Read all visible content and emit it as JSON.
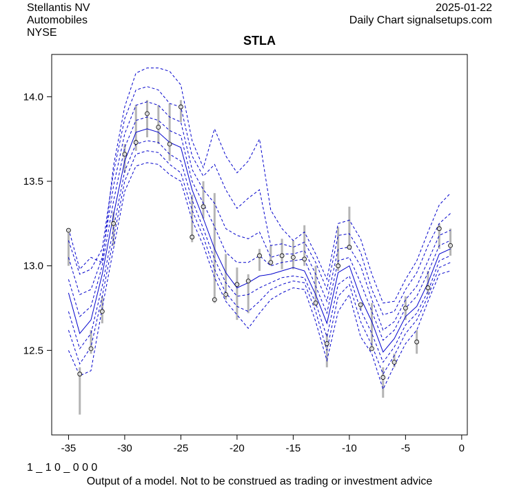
{
  "header": {
    "company": "Stellantis NV",
    "sector": "Automobiles",
    "exchange": "NYSE",
    "date": "2025-01-22",
    "source": "Daily Chart signalsetups.com"
  },
  "footer": {
    "code": "1 _ 1 0 _ 0 0 0",
    "disclaimer": "Output of a model. Not to be construed as trading or investment advice"
  },
  "chart_data": {
    "type": "line",
    "title": "STLA",
    "xlabel": "",
    "ylabel": "",
    "xlim": [
      -36.5,
      0.5
    ],
    "ylim": [
      12.0,
      14.25
    ],
    "xticks": [
      -35,
      -30,
      -25,
      -20,
      -15,
      -10,
      -5,
      0
    ],
    "yticks": [
      12.5,
      13.0,
      13.5,
      14.0
    ],
    "grid": false,
    "colors": {
      "model": "#0000cc",
      "bars": "#b4b4b4",
      "points": "#000000"
    },
    "x": [
      -35,
      -34,
      -33,
      -32,
      -31,
      -30,
      -29,
      -28,
      -27,
      -26,
      -25,
      -24,
      -23,
      -22,
      -21,
      -20,
      -19,
      -18,
      -17,
      -16,
      -15,
      -14,
      -13,
      -12,
      -11,
      -10,
      -9,
      -8,
      -7,
      -6,
      -5,
      -4,
      -3,
      -2,
      -1
    ],
    "price_ranges": [
      {
        "x": -35,
        "low": 13.0,
        "high": 13.22,
        "close": 13.21
      },
      {
        "x": -34,
        "low": 12.12,
        "high": 12.4,
        "close": 12.36
      },
      {
        "x": -33,
        "low": 12.48,
        "high": 12.62,
        "close": 12.51
      },
      {
        "x": -32,
        "low": 12.66,
        "high": 12.82,
        "close": 12.73
      },
      {
        "x": -31,
        "low": 13.12,
        "high": 13.32,
        "close": 13.25
      },
      {
        "x": -30,
        "low": 13.55,
        "high": 13.72,
        "close": 13.66
      },
      {
        "x": -29,
        "low": 13.68,
        "high": 13.95,
        "close": 13.73
      },
      {
        "x": -28,
        "low": 13.76,
        "high": 13.98,
        "close": 13.9
      },
      {
        "x": -27,
        "low": 13.72,
        "high": 13.95,
        "close": 13.82
      },
      {
        "x": -26,
        "low": 13.62,
        "high": 13.96,
        "close": 13.72
      },
      {
        "x": -25,
        "low": 13.85,
        "high": 13.98,
        "close": 13.94
      },
      {
        "x": -24,
        "low": 13.14,
        "high": 13.42,
        "close": 13.17
      },
      {
        "x": -23,
        "low": 13.28,
        "high": 13.5,
        "close": 13.35
      },
      {
        "x": -22,
        "low": 12.78,
        "high": 13.43,
        "close": 12.8
      },
      {
        "x": -21,
        "low": 12.8,
        "high": 13.07,
        "close": 12.83
      },
      {
        "x": -20,
        "low": 12.68,
        "high": 12.99,
        "close": 12.89
      },
      {
        "x": -19,
        "low": 12.72,
        "high": 12.95,
        "close": 12.91
      },
      {
        "x": -18,
        "low": 12.97,
        "high": 13.1,
        "close": 13.06
      },
      {
        "x": -17,
        "low": 13.0,
        "high": 13.12,
        "close": 13.02
      },
      {
        "x": -16,
        "low": 12.98,
        "high": 13.16,
        "close": 13.06
      },
      {
        "x": -15,
        "low": 12.98,
        "high": 13.15,
        "close": 13.05
      },
      {
        "x": -14,
        "low": 13.0,
        "high": 13.24,
        "close": 13.04
      },
      {
        "x": -13,
        "low": 12.76,
        "high": 13.0,
        "close": 12.78
      },
      {
        "x": -12,
        "low": 12.4,
        "high": 12.6,
        "close": 12.54
      },
      {
        "x": -11,
        "low": 12.97,
        "high": 13.23,
        "close": 13.0
      },
      {
        "x": -10,
        "low": 13.1,
        "high": 13.35,
        "close": 13.11
      },
      {
        "x": -9,
        "low": 12.74,
        "high": 12.78,
        "close": 12.77
      },
      {
        "x": -8,
        "low": 12.5,
        "high": 12.78,
        "close": 12.51
      },
      {
        "x": -7,
        "low": 12.22,
        "high": 12.4,
        "close": 12.34
      },
      {
        "x": -6,
        "low": 12.4,
        "high": 12.48,
        "close": 12.43
      },
      {
        "x": -5,
        "low": 12.68,
        "high": 12.82,
        "close": 12.75
      },
      {
        "x": -4,
        "low": 12.48,
        "high": 12.62,
        "close": 12.55
      },
      {
        "x": -3,
        "low": 12.83,
        "high": 12.97,
        "close": 12.87
      },
      {
        "x": -2,
        "low": 13.1,
        "high": 13.25,
        "close": 13.22
      },
      {
        "x": -1,
        "low": 13.06,
        "high": 13.22,
        "close": 13.12
      }
    ],
    "series": [
      {
        "name": "model",
        "style": "solid",
        "values": [
          12.84,
          12.6,
          12.68,
          12.95,
          13.3,
          13.62,
          13.79,
          13.81,
          13.79,
          13.73,
          13.7,
          13.45,
          13.28,
          13.1,
          12.96,
          12.87,
          12.9,
          12.94,
          12.95,
          12.97,
          12.99,
          12.97,
          12.83,
          12.66,
          12.96,
          13.0,
          12.81,
          12.67,
          12.49,
          12.57,
          12.7,
          12.76,
          12.9,
          13.07,
          13.1
        ]
      },
      {
        "name": "band-upper-1",
        "style": "dashed",
        "values": [
          12.92,
          12.7,
          12.76,
          13.0,
          13.38,
          13.7,
          13.86,
          13.88,
          13.86,
          13.8,
          13.77,
          13.5,
          13.37,
          13.23,
          13.08,
          13.02,
          13.02,
          13.06,
          13.0,
          13.02,
          13.03,
          13.04,
          12.88,
          12.72,
          13.03,
          13.05,
          12.9,
          12.73,
          12.56,
          12.62,
          12.75,
          12.82,
          12.96,
          13.12,
          13.15
        ]
      },
      {
        "name": "band-upper-2",
        "style": "dashed",
        "values": [
          13.05,
          12.83,
          12.86,
          13.05,
          13.47,
          13.78,
          13.95,
          13.97,
          13.95,
          13.88,
          13.85,
          13.57,
          13.45,
          13.37,
          13.22,
          13.18,
          13.16,
          13.2,
          13.05,
          13.07,
          13.07,
          13.09,
          12.95,
          12.79,
          13.1,
          13.11,
          13.0,
          12.8,
          12.62,
          12.67,
          12.8,
          12.88,
          13.03,
          13.18,
          13.21
        ]
      },
      {
        "name": "band-upper-3",
        "style": "dashed",
        "values": [
          13.15,
          12.95,
          12.98,
          13.1,
          13.55,
          13.87,
          14.04,
          14.06,
          14.04,
          13.96,
          13.94,
          13.65,
          13.53,
          13.6,
          13.45,
          13.34,
          13.4,
          13.45,
          13.12,
          13.13,
          13.11,
          13.14,
          13.02,
          12.86,
          13.18,
          13.19,
          13.08,
          12.86,
          12.71,
          12.73,
          12.86,
          12.96,
          13.12,
          13.25,
          13.31
        ]
      },
      {
        "name": "band-upper-4",
        "style": "dashed",
        "values": [
          13.22,
          12.98,
          13.05,
          13.02,
          13.59,
          13.94,
          14.14,
          14.17,
          14.17,
          14.15,
          14.07,
          13.74,
          13.58,
          13.81,
          13.65,
          13.55,
          13.62,
          13.75,
          13.33,
          13.22,
          13.15,
          13.2,
          13.07,
          12.92,
          13.25,
          13.27,
          13.16,
          12.95,
          12.78,
          12.79,
          12.92,
          13.03,
          13.2,
          13.36,
          13.43
        ]
      },
      {
        "name": "band-lower-1",
        "style": "dashed",
        "values": [
          12.73,
          12.51,
          12.6,
          12.88,
          13.22,
          13.56,
          13.72,
          13.74,
          13.73,
          13.66,
          13.62,
          13.39,
          13.22,
          13.04,
          12.9,
          12.82,
          12.83,
          12.87,
          12.9,
          12.93,
          12.94,
          12.93,
          12.78,
          12.58,
          12.89,
          12.94,
          12.74,
          12.6,
          12.43,
          12.52,
          12.65,
          12.72,
          12.85,
          13.03,
          13.06
        ]
      },
      {
        "name": "band-lower-2",
        "style": "dashed",
        "values": [
          12.62,
          12.42,
          12.52,
          12.82,
          13.16,
          13.5,
          13.66,
          13.68,
          13.67,
          13.6,
          13.55,
          13.33,
          13.17,
          12.98,
          12.84,
          12.76,
          12.73,
          12.79,
          12.86,
          12.89,
          12.91,
          12.9,
          12.73,
          12.5,
          12.82,
          12.89,
          12.67,
          12.53,
          12.36,
          12.47,
          12.6,
          12.68,
          12.82,
          12.99,
          13.02
        ]
      },
      {
        "name": "band-lower-3",
        "style": "dashed",
        "values": [
          12.5,
          12.35,
          12.38,
          12.75,
          13.1,
          13.44,
          13.59,
          13.61,
          13.6,
          13.54,
          13.5,
          13.27,
          13.12,
          12.93,
          12.79,
          12.71,
          12.63,
          12.72,
          12.8,
          12.84,
          12.87,
          12.86,
          12.67,
          12.44,
          12.73,
          12.83,
          12.58,
          12.48,
          12.27,
          12.41,
          12.54,
          12.62,
          12.79,
          12.95,
          12.97
        ]
      }
    ]
  }
}
